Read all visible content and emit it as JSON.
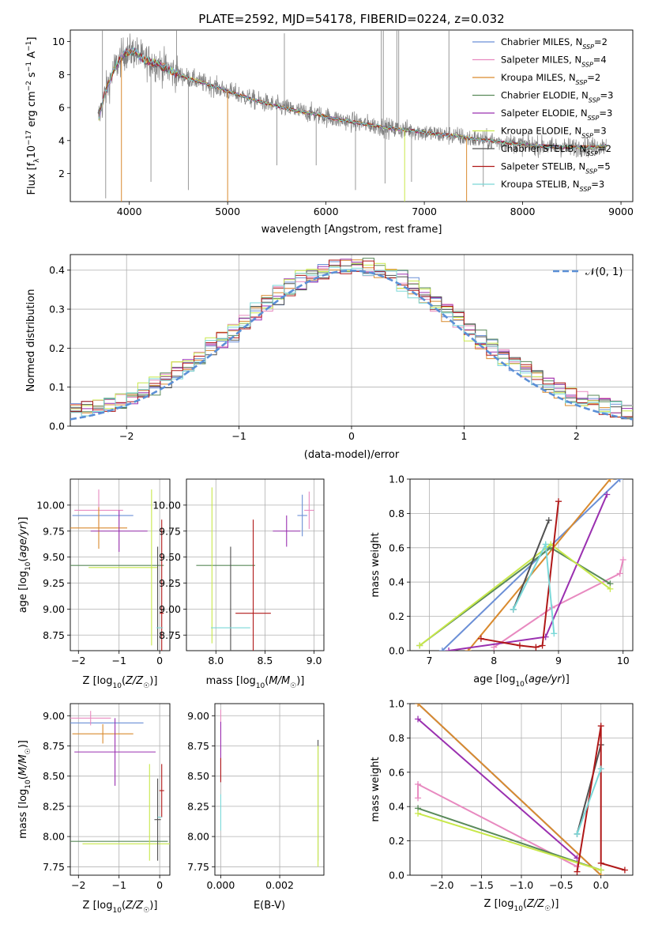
{
  "title": "PLATE=2592, MJD=54178, FIBERID=0224, z=0.032",
  "colors": {
    "Chabrier MILES": "#6b8fd6",
    "Salpeter MILES": "#e88ac0",
    "Kroupa MILES": "#d98a2e",
    "Chabrier ELODIE": "#5a8a5a",
    "Salpeter ELODIE": "#9a30b0",
    "Kroupa ELODIE": "#c8e84a",
    "Chabrier STELIB": "#505050",
    "Salpeter STELIB": "#b01818",
    "Kroupa STELIB": "#7ad8d8",
    "data": "#808080",
    "normal": "#5b8fd6"
  },
  "chart_data": [
    {
      "id": "spectrum",
      "type": "line",
      "xlabel": "wavelength [Angstrom, rest frame]",
      "ylabel": "Flux [f_λ 10^-17 erg cm^-2 s^-1 A^-1]",
      "xlim": [
        3400,
        9120
      ],
      "ylim": [
        0.3,
        10.7
      ],
      "xticks": [
        4000,
        5000,
        6000,
        7000,
        8000,
        9000
      ],
      "yticks": [
        2,
        4,
        6,
        8,
        10
      ],
      "legend": [
        {
          "name": "Chabrier MILES",
          "n": 2
        },
        {
          "name": "Salpeter MILES",
          "n": 4
        },
        {
          "name": "Kroupa MILES",
          "n": 2
        },
        {
          "name": "Chabrier ELODIE",
          "n": 3
        },
        {
          "name": "Salpeter ELODIE",
          "n": 3
        },
        {
          "name": "Kroupa ELODIE",
          "n": 3
        },
        {
          "name": "Chabrier STELIB",
          "n": 2
        },
        {
          "name": "Salpeter STELIB",
          "n": 5
        },
        {
          "name": "Kroupa STELIB",
          "n": 3
        }
      ],
      "legend_position": "top-right",
      "continuum": {
        "wavelength": [
          3680,
          3750,
          3850,
          3950,
          4050,
          4150,
          4300,
          4500,
          4700,
          4900,
          5100,
          5300,
          5500,
          5700,
          5900,
          6100,
          6300,
          6500,
          6700,
          6900,
          7100,
          7300,
          7500,
          7800,
          8100,
          8400,
          8700,
          8850
        ],
        "flux": [
          5.2,
          6.8,
          8.4,
          9.3,
          9.4,
          8.9,
          8.6,
          8.0,
          7.6,
          7.2,
          6.8,
          6.4,
          6.1,
          5.8,
          5.6,
          5.3,
          5.1,
          4.9,
          4.7,
          4.6,
          4.4,
          4.3,
          4.1,
          3.9,
          3.7,
          3.6,
          3.6,
          3.7
        ]
      }
    },
    {
      "id": "residuals",
      "type": "line",
      "xlabel": "(data-model)/error",
      "ylabel": "Normed distribution",
      "xlim": [
        -2.5,
        2.5
      ],
      "ylim": [
        0,
        0.44
      ],
      "xticks": [
        -2,
        -1,
        0,
        1,
        2
      ],
      "yticks": [
        0.0,
        0.1,
        0.2,
        0.3,
        0.4
      ],
      "legend": "𝒩(0, 1)",
      "legend_position": "top-right"
    },
    {
      "id": "age-vs-Z",
      "type": "scatter",
      "xlabel": "Z [log10(Z/Z☉)]",
      "ylabel": "age [log10(age/yr)]",
      "xlim": [
        -2.2,
        0.25
      ],
      "ylim": [
        8.6,
        10.25
      ],
      "xticks": [
        -2,
        -1,
        0
      ],
      "yticks": [
        8.75,
        9.0,
        9.25,
        9.5,
        9.75,
        10.0
      ],
      "points": [
        {
          "series": "Chabrier MILES",
          "x": -1.4,
          "y": 9.9,
          "xerr": 0.75,
          "yerr": 0.0
        },
        {
          "series": "Salpeter MILES",
          "x": -1.5,
          "y": 9.95,
          "xerr": 0.6,
          "yerr": 0.2
        },
        {
          "series": "Kroupa MILES",
          "x": -1.5,
          "y": 9.78,
          "xerr": 0.7,
          "yerr": 0.2
        },
        {
          "series": "Chabrier ELODIE",
          "x": -1.1,
          "y": 9.42,
          "xerr": 1.2,
          "yerr": 0.0
        },
        {
          "series": "Salpeter ELODIE",
          "x": -1.0,
          "y": 9.75,
          "xerr": 0.7,
          "yerr": 0.2
        },
        {
          "series": "Kroupa ELODIE",
          "x": -0.9,
          "y": 9.4,
          "xerr": 0.85,
          "yerr": 0.0
        },
        {
          "series": "Kroupa ELODIE",
          "x": -0.2,
          "y": 9.4,
          "xerr": 0.0,
          "yerr": 0.75
        },
        {
          "series": "Chabrier STELIB",
          "x": -0.05,
          "y": 9.0,
          "xerr": 0.0,
          "yerr": 0.6
        },
        {
          "series": "Salpeter STELIB",
          "x": 0.05,
          "y": 8.96,
          "xerr": 0.05,
          "yerr": 0.9
        },
        {
          "series": "Kroupa STELIB",
          "x": 0.0,
          "y": 8.82,
          "xerr": 0.08,
          "yerr": 0.0
        }
      ]
    },
    {
      "id": "age-vs-mass",
      "type": "scatter",
      "xlabel": "mass [log10(M/M☉)]",
      "ylabel": "",
      "xlim": [
        7.7,
        9.1
      ],
      "ylim": [
        8.6,
        10.25
      ],
      "xticks": [
        8.0,
        8.5,
        9.0
      ],
      "yticks": [
        8.75,
        9.0,
        9.25,
        9.5,
        9.75,
        10.0
      ],
      "points": [
        {
          "series": "Chabrier MILES",
          "x": 8.88,
          "y": 9.9,
          "xerr": 0.05,
          "yerr": 0.2
        },
        {
          "series": "Salpeter MILES",
          "x": 8.95,
          "y": 9.95,
          "xerr": 0.05,
          "yerr": 0.18
        },
        {
          "series": "Salpeter ELODIE",
          "x": 8.72,
          "y": 9.75,
          "xerr": 0.14,
          "yerr": 0.15
        },
        {
          "series": "Chabrier ELODIE",
          "x": 8.1,
          "y": 9.42,
          "xerr": 0.3,
          "yerr": 0.0
        },
        {
          "series": "Kroupa ELODIE",
          "x": 7.96,
          "y": 9.42,
          "xerr": 0.0,
          "yerr": 0.75
        },
        {
          "series": "Chabrier STELIB",
          "x": 8.15,
          "y": 9.1,
          "xerr": 0.0,
          "yerr": 0.5
        },
        {
          "series": "Salpeter STELIB",
          "x": 8.38,
          "y": 8.96,
          "xerr": 0.18,
          "yerr": 0.9
        },
        {
          "series": "Kroupa STELIB",
          "x": 8.15,
          "y": 8.82,
          "xerr": 0.2,
          "yerr": 0.0
        }
      ]
    },
    {
      "id": "massweight-vs-age",
      "type": "line",
      "xlabel": "age [log10(age/yr)]",
      "ylabel": "mass weight",
      "xlim": [
        6.7,
        10.15
      ],
      "ylim": [
        0,
        1.0
      ],
      "xticks": [
        7,
        8,
        9,
        10
      ],
      "yticks": [
        0.0,
        0.2,
        0.4,
        0.6,
        0.8,
        1.0
      ],
      "series": [
        {
          "series": "Chabrier MILES",
          "x": [
            7.2,
            9.95
          ],
          "y": [
            0.0,
            1.0
          ]
        },
        {
          "series": "Kroupa MILES",
          "x": [
            7.6,
            9.8
          ],
          "y": [
            0.0,
            1.0
          ]
        },
        {
          "series": "Salpeter MILES",
          "x": [
            8.0,
            8.9,
            9.95,
            10.0
          ],
          "y": [
            0.02,
            0.25,
            0.45,
            0.53
          ]
        },
        {
          "series": "Chabrier ELODIE",
          "x": [
            6.85,
            8.88,
            9.8
          ],
          "y": [
            0.03,
            0.6,
            0.39
          ]
        },
        {
          "series": "Salpeter ELODIE",
          "x": [
            7.3,
            8.8,
            9.75
          ],
          "y": [
            0.0,
            0.08,
            0.91
          ]
        },
        {
          "series": "Kroupa ELODIE",
          "x": [
            6.85,
            8.88,
            9.8
          ],
          "y": [
            0.03,
            0.62,
            0.36
          ]
        },
        {
          "series": "Chabrier STELIB",
          "x": [
            8.3,
            8.85
          ],
          "y": [
            0.24,
            0.76
          ]
        },
        {
          "series": "Salpeter STELIB",
          "x": [
            7.8,
            8.4,
            8.65,
            8.75,
            9.0
          ],
          "y": [
            0.07,
            0.03,
            0.02,
            0.03,
            0.87
          ]
        },
        {
          "series": "Kroupa STELIB",
          "x": [
            8.3,
            8.8,
            8.93
          ],
          "y": [
            0.24,
            0.62,
            0.1
          ]
        }
      ]
    },
    {
      "id": "mass-vs-Z",
      "type": "scatter",
      "xlabel": "Z [log10(Z/Z☉)]",
      "ylabel": "mass [log10(M/M☉)]",
      "xlim": [
        -2.2,
        0.25
      ],
      "ylim": [
        7.68,
        9.1
      ],
      "xticks": [
        -2,
        -1,
        0
      ],
      "yticks": [
        7.75,
        8.0,
        8.25,
        8.5,
        8.75,
        9.0
      ],
      "points": [
        {
          "series": "Chabrier MILES",
          "x": -1.3,
          "y": 8.94,
          "xerr": 0.9,
          "yerr": 0.0
        },
        {
          "series": "Salpeter MILES",
          "x": -1.7,
          "y": 8.98,
          "xerr": 0.5,
          "yerr": 0.06
        },
        {
          "series": "Kroupa MILES",
          "x": -1.4,
          "y": 8.85,
          "xerr": 0.75,
          "yerr": 0.08
        },
        {
          "series": "Salpeter ELODIE",
          "x": -1.1,
          "y": 8.7,
          "xerr": 1.0,
          "yerr": 0.28
        },
        {
          "series": "Chabrier ELODIE",
          "x": -1.0,
          "y": 7.96,
          "xerr": 1.2,
          "yerr": 0.0
        },
        {
          "series": "Kroupa ELODIE",
          "x": -0.8,
          "y": 7.94,
          "xerr": 1.1,
          "yerr": 0.0
        },
        {
          "series": "Kroupa ELODIE",
          "x": -0.25,
          "y": 8.2,
          "xerr": 0.0,
          "yerr": 0.4
        },
        {
          "series": "Chabrier STELIB",
          "x": -0.05,
          "y": 8.14,
          "xerr": 0.08,
          "yerr": 0.34
        },
        {
          "series": "Salpeter STELIB",
          "x": 0.05,
          "y": 8.38,
          "xerr": 0.06,
          "yerr": 0.22
        },
        {
          "series": "Kroupa STELIB",
          "x": 0.0,
          "y": 8.16,
          "xerr": 0.05,
          "yerr": 0.0
        }
      ]
    },
    {
      "id": "mass-vs-ebv",
      "type": "scatter",
      "xlabel": "E(B-V)",
      "ylabel": "",
      "xlim": [
        -0.0002,
        0.0035
      ],
      "ylim": [
        7.68,
        9.1
      ],
      "xticks": [
        0.0,
        0.002
      ],
      "xticklabels": [
        "0.000",
        "0.002"
      ],
      "yticks": [
        7.75,
        8.0,
        8.25,
        8.5,
        8.75,
        9.0
      ],
      "points": [
        {
          "series": "Salpeter MILES",
          "x": 0.0,
          "y": 8.85,
          "xerr": 0.0,
          "yerr": 0.2
        },
        {
          "series": "Salpeter ELODIE",
          "x": 0.0,
          "y": 8.7,
          "xerr": 0.0,
          "yerr": 0.25
        },
        {
          "series": "Salpeter STELIB",
          "x": 0.0,
          "y": 8.55,
          "xerr": 0.0,
          "yerr": 0.1
        },
        {
          "series": "Kroupa STELIB",
          "x": 0.0,
          "y": 8.2,
          "xerr": 0.0,
          "yerr": 0.15
        },
        {
          "series": "Chabrier STELIB",
          "x": 0.0033,
          "y": 8.3,
          "xerr": 0.0,
          "yerr": 0.5
        },
        {
          "series": "Kroupa ELODIE",
          "x": 0.0033,
          "y": 8.25,
          "xerr": 0.0,
          "yerr": 0.5
        }
      ]
    },
    {
      "id": "massweight-vs-Z",
      "type": "line",
      "xlabel": "Z [log10(Z/Z☉)]",
      "ylabel": "mass weight",
      "xlim": [
        -2.4,
        0.4
      ],
      "ylim": [
        0,
        1.0
      ],
      "xticks": [
        -2.0,
        -1.5,
        -1.0,
        -0.5,
        0.0
      ],
      "yticks": [
        0.0,
        0.2,
        0.4,
        0.6,
        0.8,
        1.0
      ],
      "series": [
        {
          "series": "Chabrier MILES",
          "x": [
            -2.3,
            0.0
          ],
          "y": [
            1.0,
            0.0
          ]
        },
        {
          "series": "Kroupa MILES",
          "x": [
            -2.3,
            0.0
          ],
          "y": [
            1.0,
            0.0
          ]
        },
        {
          "series": "Salpeter ELODIE",
          "x": [
            -2.3,
            -0.3
          ],
          "y": [
            0.91,
            0.1
          ]
        },
        {
          "series": "Salpeter MILES",
          "x": [
            -2.3,
            -2.3,
            -0.3
          ],
          "y": [
            0.45,
            0.53,
            0.05
          ]
        },
        {
          "series": "Chabrier ELODIE",
          "x": [
            -2.3,
            0.0
          ],
          "y": [
            0.39,
            0.03
          ]
        },
        {
          "series": "Kroupa ELODIE",
          "x": [
            -2.3,
            0.0
          ],
          "y": [
            0.36,
            0.03
          ]
        },
        {
          "series": "Chabrier STELIB",
          "x": [
            -0.3,
            0.0
          ],
          "y": [
            0.24,
            0.76
          ]
        },
        {
          "series": "Salpeter STELIB",
          "x": [
            -0.3,
            0.0,
            0.0,
            0.3
          ],
          "y": [
            0.02,
            0.87,
            0.07,
            0.03
          ]
        },
        {
          "series": "Kroupa STELIB",
          "x": [
            -0.3,
            0.0
          ],
          "y": [
            0.24,
            0.62
          ]
        }
      ]
    }
  ]
}
